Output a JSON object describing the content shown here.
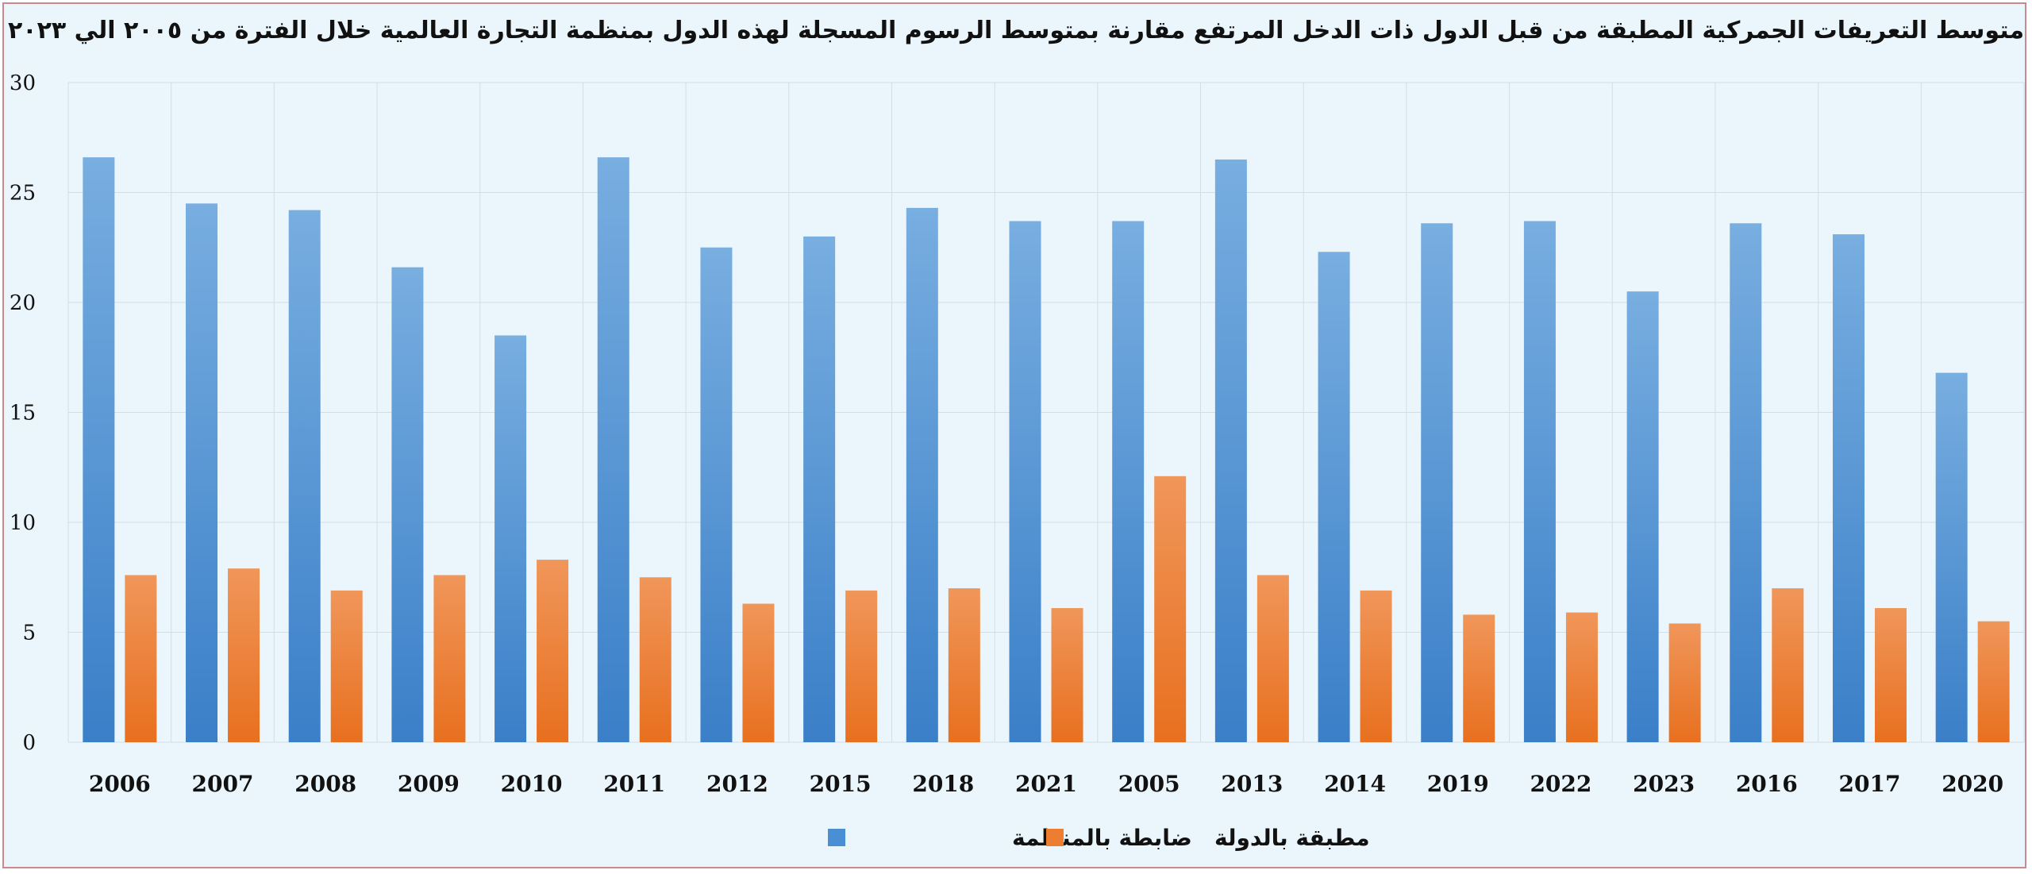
{
  "chart_data": {
    "type": "bar",
    "title": "متوسط التعريفات الجمركية المطبقة من قبل الدول ذات الدخل المرتفع مقارنة بمتوسط الرسوم المسجلة لهذه الدول بمنظمة التجارة العالمية خلال الفترة من ٢٠٠٥ الي ٢٠٢٣",
    "xlabel": "",
    "ylabel": "",
    "ylim": [
      0,
      30
    ],
    "yticks": [
      "0",
      "5",
      "10",
      "15",
      "20",
      "25",
      "30"
    ],
    "grid": true,
    "legend_position": "bottom",
    "categories": [
      "2006",
      "2007",
      "2008",
      "2009",
      "2010",
      "2011",
      "2012",
      "2015",
      "2018",
      "2021",
      "2005",
      "2013",
      "2014",
      "2019",
      "2022",
      "2023",
      "2016",
      "2017",
      "2020"
    ],
    "series": [
      {
        "name": "ضابطة بالمنظمة",
        "color": "#4a8fd4",
        "values": [
          26.6,
          24.5,
          24.2,
          21.6,
          18.5,
          26.6,
          22.5,
          23.0,
          24.3,
          23.7,
          23.7,
          26.5,
          22.3,
          23.6,
          23.7,
          20.5,
          23.6,
          23.1,
          16.8
        ]
      },
      {
        "name": "مطبقة بالدولة",
        "color": "#ed7d31",
        "values": [
          7.6,
          7.9,
          6.9,
          7.6,
          8.3,
          7.5,
          6.3,
          6.9,
          7.0,
          6.1,
          12.1,
          7.6,
          6.9,
          5.8,
          5.9,
          5.4,
          7.0,
          6.1,
          5.5
        ]
      }
    ]
  }
}
